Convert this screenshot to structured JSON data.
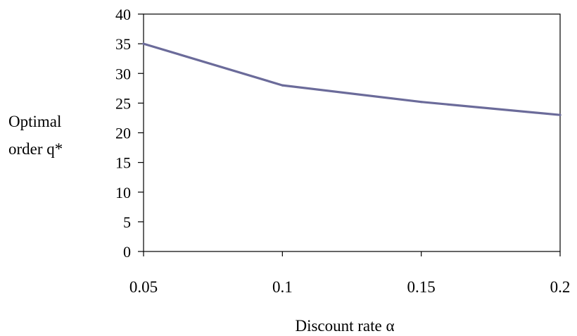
{
  "chart_data": {
    "type": "line",
    "title": "",
    "xlabel": "Discount rate α",
    "ylabel_lines": [
      "Optimal",
      "order q*"
    ],
    "x": [
      0.05,
      0.1,
      0.15,
      0.2
    ],
    "x_tick_labels": [
      "0.05",
      "0.1",
      "0.15",
      "0.2"
    ],
    "y_ticks": [
      0,
      5,
      10,
      15,
      20,
      25,
      30,
      35,
      40
    ],
    "xlim": [
      0.05,
      0.2
    ],
    "ylim": [
      0,
      40
    ],
    "grid": false,
    "legend": "none",
    "series": [
      {
        "values": [
          35,
          28,
          25.2,
          23
        ],
        "color": "#6b6b9a"
      }
    ]
  }
}
